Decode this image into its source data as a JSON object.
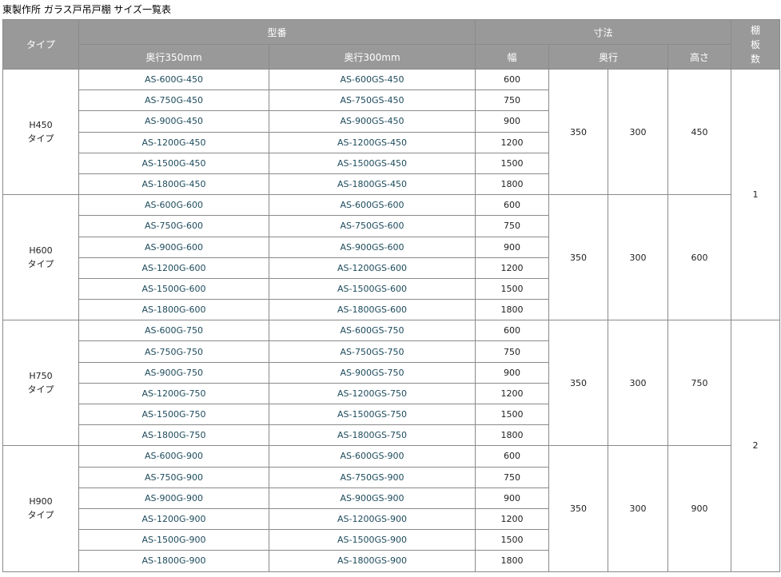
{
  "title": "東製作所 ガラス戸吊戸棚 サイズ一覧表",
  "header": {
    "type": "タイプ",
    "model": "型番",
    "model_350": "奥行350mm",
    "model_300": "奥行300mm",
    "dims": "寸法",
    "width": "幅",
    "depth": "奥行",
    "height": "高さ",
    "shelves": "棚\n板\n数"
  },
  "widths": [
    "600",
    "750",
    "900",
    "1200",
    "1500",
    "1800"
  ],
  "groups": [
    {
      "type": "H450\nタイプ",
      "height": "450",
      "depth_350": "350",
      "depth_300": "300",
      "models_350": [
        "AS-600G-450",
        "AS-750G-450",
        "AS-900G-450",
        "AS-1200G-450",
        "AS-1500G-450",
        "AS-1800G-450"
      ],
      "models_300": [
        "AS-600GS-450",
        "AS-750GS-450",
        "AS-900GS-450",
        "AS-1200GS-450",
        "AS-1500GS-450",
        "AS-1800GS-450"
      ]
    },
    {
      "type": "H600\nタイプ",
      "height": "600",
      "depth_350": "350",
      "depth_300": "300",
      "models_350": [
        "AS-600G-600",
        "AS-750G-600",
        "AS-900G-600",
        "AS-1200G-600",
        "AS-1500G-600",
        "AS-1800G-600"
      ],
      "models_300": [
        "AS-600GS-600",
        "AS-750GS-600",
        "AS-900GS-600",
        "AS-1200GS-600",
        "AS-1500GS-600",
        "AS-1800GS-600"
      ]
    },
    {
      "type": "H750\nタイプ",
      "height": "750",
      "depth_350": "350",
      "depth_300": "300",
      "models_350": [
        "AS-600G-750",
        "AS-750G-750",
        "AS-900G-750",
        "AS-1200G-750",
        "AS-1500G-750",
        "AS-1800G-750"
      ],
      "models_300": [
        "AS-600GS-750",
        "AS-750GS-750",
        "AS-900GS-750",
        "AS-1200GS-750",
        "AS-1500GS-750",
        "AS-1800GS-750"
      ]
    },
    {
      "type": "H900\nタイプ",
      "height": "900",
      "depth_350": "350",
      "depth_300": "300",
      "models_350": [
        "AS-600G-900",
        "AS-750G-900",
        "AS-900G-900",
        "AS-1200G-900",
        "AS-1500G-900",
        "AS-1800G-900"
      ],
      "models_300": [
        "AS-600GS-900",
        "AS-750GS-900",
        "AS-900GS-900",
        "AS-1200GS-900",
        "AS-1500GS-900",
        "AS-1800GS-900"
      ]
    }
  ],
  "shelf_counts": [
    "1",
    "2"
  ],
  "colors": {
    "header_bg": "#999999",
    "header_text": "#ffffff",
    "model_text": "#1d4b5c",
    "border": "#8a8a8a"
  }
}
